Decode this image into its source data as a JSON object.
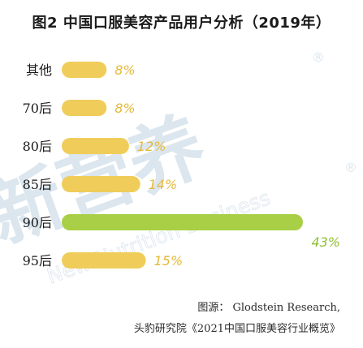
{
  "title": "图2  中国口服美容产品用户分析（2019年）",
  "watermark": {
    "chinese": "新营养",
    "english": "New Nutrition Business",
    "registered": "®"
  },
  "source": {
    "line1": "图源：  Glodstein Research,",
    "line2": "头豹研究院《2021中国口服美容行业概览》"
  },
  "colors": {
    "bar_default": "#f0cd5a",
    "bar_highlight": "#a8cf45",
    "label_default": "#e6b93a",
    "label_highlight": "#8ebf32"
  },
  "chart_data": {
    "type": "bar",
    "orientation": "horizontal",
    "categories": [
      "其他",
      "70后",
      "80后",
      "85后",
      "90后",
      "95后"
    ],
    "values": [
      8,
      8,
      12,
      14,
      43,
      15
    ],
    "value_labels": [
      "8%",
      "8%",
      "12%",
      "14%",
      "43%",
      "15%"
    ],
    "highlight_index": 4,
    "xlim": [
      0,
      43
    ],
    "unit": "%"
  }
}
